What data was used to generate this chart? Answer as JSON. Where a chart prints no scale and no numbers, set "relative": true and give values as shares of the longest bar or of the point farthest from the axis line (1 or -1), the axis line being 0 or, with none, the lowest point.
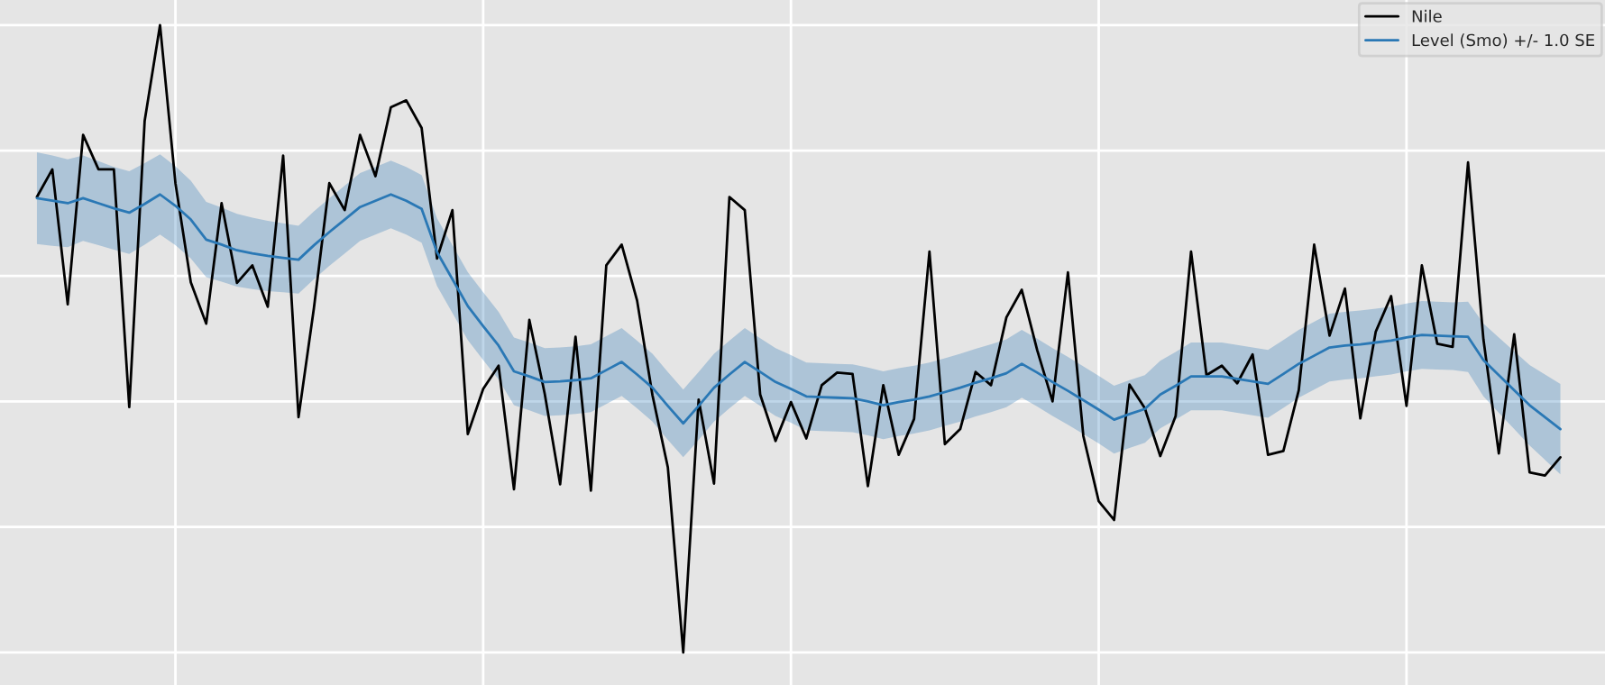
{
  "chart_data": {
    "type": "line",
    "relative": true,
    "grid": true,
    "legend": "top right",
    "categories": [
      null,
      null,
      null,
      null,
      null,
      null,
      null,
      null,
      null,
      null,
      null,
      null,
      null,
      null,
      null,
      null,
      null,
      null,
      null,
      null,
      null,
      null,
      null,
      null,
      null,
      null,
      null,
      null,
      null,
      null,
      null,
      null,
      null,
      null,
      null,
      null,
      null,
      null,
      null,
      null,
      null,
      null,
      null,
      null,
      null,
      null,
      null,
      null,
      null,
      null,
      null,
      null,
      null,
      null,
      null,
      null,
      null,
      null,
      null,
      null,
      null,
      null,
      null,
      null,
      null,
      null,
      null,
      null,
      null,
      null,
      null,
      null,
      null,
      null,
      null,
      null,
      null,
      null,
      null,
      null,
      null,
      null,
      null,
      null,
      null,
      null,
      null,
      null,
      null,
      null,
      null,
      null,
      null,
      null,
      null,
      null,
      null,
      null,
      null,
      null
    ],
    "series": [
      {
        "name": "Nile",
        "color": "#000000",
        "values": [
          0.726,
          0.77,
          0.555,
          0.825,
          0.77,
          0.77,
          0.391,
          0.847,
          1.0,
          0.748,
          0.59,
          0.524,
          0.716,
          0.589,
          0.617,
          0.551,
          0.792,
          0.375,
          0.549,
          0.748,
          0.705,
          0.825,
          0.759,
          0.869,
          0.88,
          0.836,
          0.628,
          0.705,
          0.348,
          0.42,
          0.457,
          0.26,
          0.53,
          0.412,
          0.268,
          0.503,
          0.258,
          0.617,
          0.65,
          0.561,
          0.41,
          0.295,
          0,
          0.403,
          0.269,
          0.726,
          0.705,
          0.411,
          0.337,
          0.399,
          0.341,
          0.426,
          0.446,
          0.444,
          0.265,
          0.426,
          0.315,
          0.372,
          0.639,
          0.332,
          0.356,
          0.447,
          0.426,
          0.534,
          0.578,
          0.482,
          0.4,
          0.606,
          0.345,
          0.241,
          0.211,
          0.427,
          0.389,
          0.313,
          0.377,
          0.639,
          0.442,
          0.457,
          0.429,
          0.475,
          0.315,
          0.321,
          0.418,
          0.65,
          0.505,
          0.58,
          0.373,
          0.511,
          0.568,
          0.393,
          0.617,
          0.492,
          0.487,
          0.781,
          0.499,
          0.317,
          0.507,
          0.287,
          0.282,
          0.311
        ]
      },
      {
        "name": "Level (Smo) +/- 1.0 SE",
        "color": "#2a78b5",
        "values": [
          0.724,
          0.72,
          0.716,
          0.724,
          0.716,
          0.708,
          0.701,
          0.715,
          0.73,
          0.712,
          0.69,
          0.658,
          0.65,
          0.641,
          0.636,
          0.632,
          0.629,
          0.626,
          0.649,
          0.67,
          0.69,
          0.71,
          0.72,
          0.73,
          0.72,
          0.707,
          0.638,
          0.595,
          0.552,
          0.52,
          0.489,
          0.448,
          0.44,
          0.431,
          0.432,
          0.434,
          0.437,
          0.45,
          0.463,
          0.443,
          0.422,
          0.393,
          0.365,
          0.393,
          0.422,
          0.443,
          0.463,
          0.447,
          0.431,
          0.42,
          0.408,
          0.407,
          0.406,
          0.405,
          0.4,
          0.394,
          0.399,
          0.403,
          0.408,
          0.415,
          0.422,
          0.43,
          0.437,
          0.445,
          0.46,
          0.446,
          0.431,
          0.417,
          0.402,
          0.387,
          0.371,
          0.38,
          0.388,
          0.411,
          0.425,
          0.44,
          0.44,
          0.44,
          0.436,
          0.432,
          0.428,
          0.444,
          0.46,
          0.473,
          0.486,
          0.489,
          0.491,
          0.494,
          0.497,
          0.502,
          0.506,
          0.505,
          0.504,
          0.503,
          0.466,
          0.442,
          0.418,
          0.394,
          0.375,
          0.356
        ],
        "lower": [
          0.651,
          0.648,
          0.646,
          0.656,
          0.649,
          0.642,
          0.635,
          0.65,
          0.666,
          0.649,
          0.628,
          0.598,
          0.591,
          0.583,
          0.579,
          0.576,
          0.574,
          0.572,
          0.595,
          0.616,
          0.636,
          0.656,
          0.666,
          0.676,
          0.666,
          0.653,
          0.584,
          0.541,
          0.498,
          0.466,
          0.435,
          0.394,
          0.386,
          0.377,
          0.378,
          0.38,
          0.383,
          0.396,
          0.409,
          0.389,
          0.368,
          0.339,
          0.311,
          0.339,
          0.368,
          0.389,
          0.409,
          0.393,
          0.377,
          0.366,
          0.354,
          0.353,
          0.352,
          0.351,
          0.346,
          0.34,
          0.345,
          0.349,
          0.354,
          0.361,
          0.368,
          0.376,
          0.383,
          0.391,
          0.406,
          0.392,
          0.377,
          0.363,
          0.348,
          0.333,
          0.317,
          0.326,
          0.334,
          0.357,
          0.371,
          0.386,
          0.386,
          0.386,
          0.382,
          0.378,
          0.374,
          0.39,
          0.406,
          0.419,
          0.432,
          0.435,
          0.437,
          0.44,
          0.443,
          0.448,
          0.452,
          0.451,
          0.45,
          0.447,
          0.408,
          0.382,
          0.356,
          0.33,
          0.307,
          0.284
        ],
        "upper": [
          0.797,
          0.792,
          0.786,
          0.792,
          0.783,
          0.774,
          0.767,
          0.78,
          0.794,
          0.775,
          0.752,
          0.718,
          0.709,
          0.699,
          0.693,
          0.688,
          0.684,
          0.68,
          0.703,
          0.724,
          0.744,
          0.764,
          0.774,
          0.784,
          0.774,
          0.761,
          0.692,
          0.649,
          0.606,
          0.574,
          0.543,
          0.502,
          0.494,
          0.485,
          0.486,
          0.488,
          0.491,
          0.504,
          0.517,
          0.497,
          0.476,
          0.447,
          0.419,
          0.447,
          0.476,
          0.497,
          0.517,
          0.501,
          0.485,
          0.474,
          0.462,
          0.461,
          0.46,
          0.459,
          0.454,
          0.448,
          0.453,
          0.457,
          0.462,
          0.469,
          0.476,
          0.484,
          0.491,
          0.499,
          0.514,
          0.5,
          0.485,
          0.471,
          0.456,
          0.441,
          0.425,
          0.434,
          0.442,
          0.465,
          0.479,
          0.494,
          0.494,
          0.494,
          0.49,
          0.486,
          0.482,
          0.498,
          0.514,
          0.527,
          0.54,
          0.543,
          0.545,
          0.548,
          0.551,
          0.556,
          0.56,
          0.559,
          0.558,
          0.559,
          0.524,
          0.502,
          0.48,
          0.458,
          0.443,
          0.428
        ]
      }
    ]
  }
}
